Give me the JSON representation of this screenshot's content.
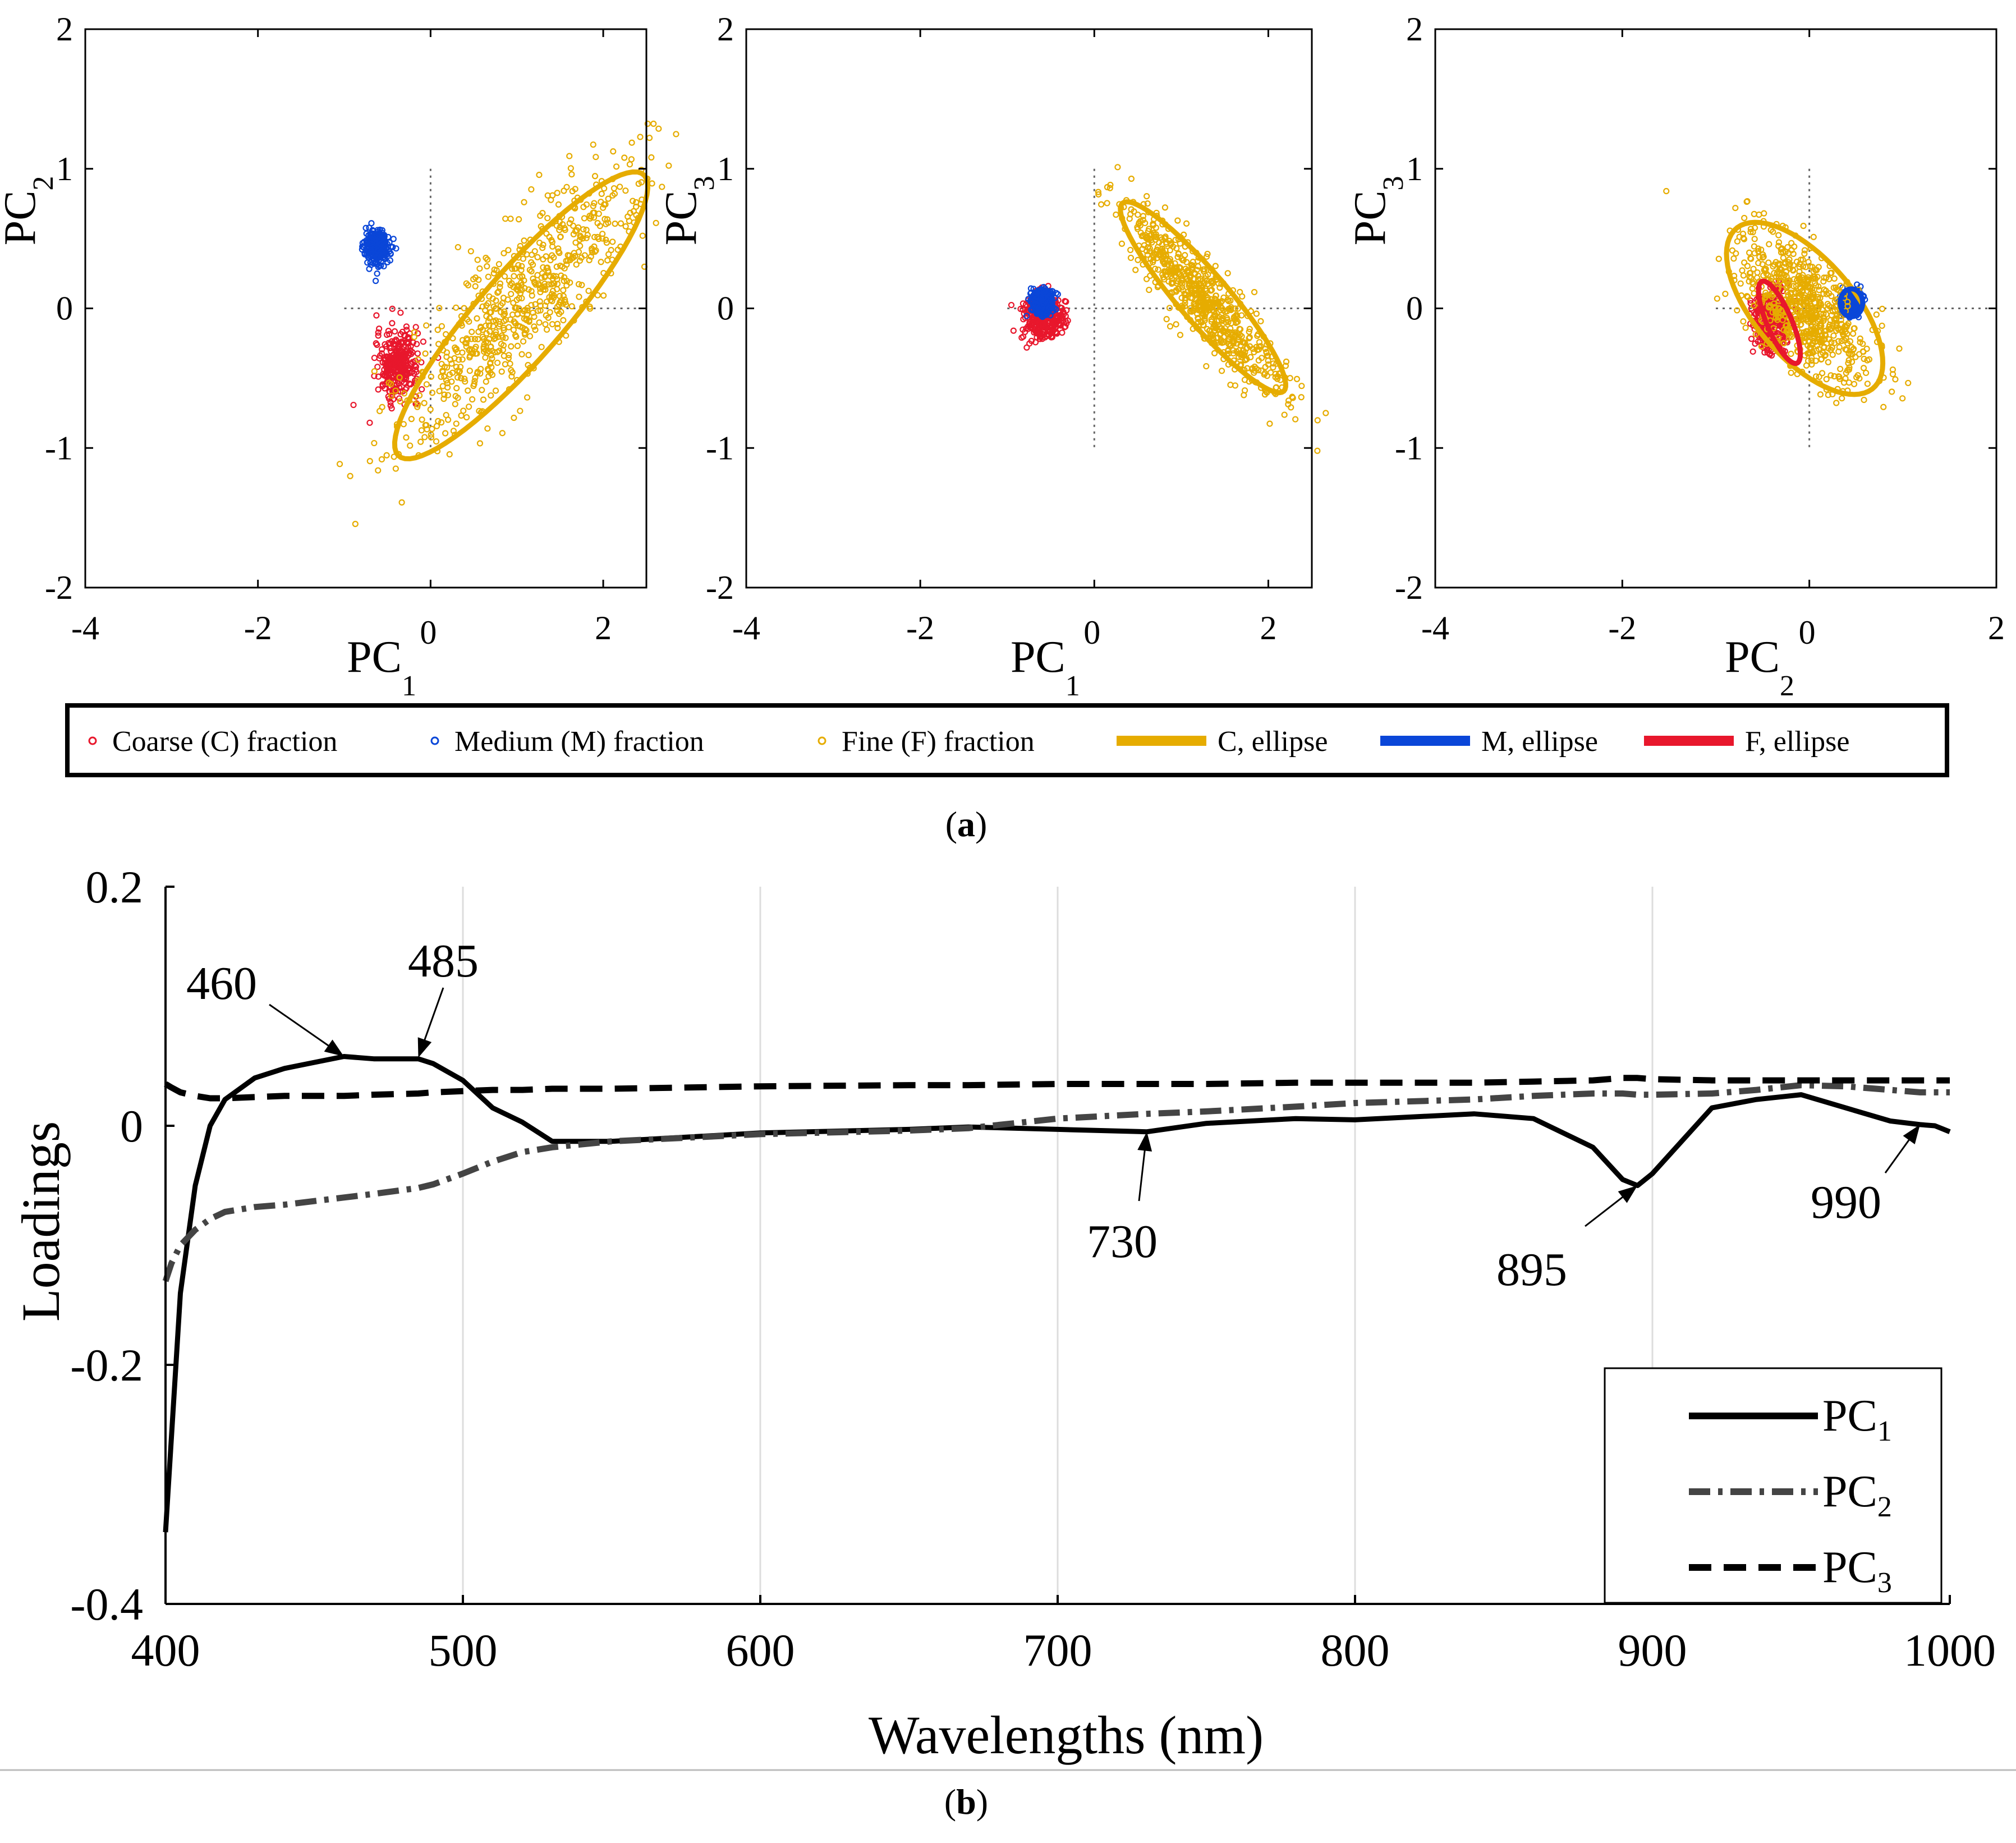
{
  "captions": {
    "a": "a",
    "b": "b"
  },
  "colors": {
    "coarse": "#e8172c",
    "medium": "#0a46d8",
    "fine": "#e6ac00",
    "pc1": "#000000",
    "pc2": "#444444",
    "pc3": "#000000"
  },
  "chart_data": [
    {
      "type": "scatter",
      "title": "",
      "xlabel": {
        "base": "PC",
        "sub": "1"
      },
      "ylabel": {
        "base": "PC",
        "sub": "2"
      },
      "xlim": [
        -4,
        2.5
      ],
      "ylim": [
        -2,
        2
      ],
      "xticks": [
        -4,
        -2,
        0,
        2
      ],
      "yticks": [
        -2,
        -1,
        0,
        1,
        2
      ],
      "series": [
        {
          "name": "Coarse (C) fraction",
          "center": [
            -0.38,
            -0.4
          ],
          "sd": [
            0.12,
            0.12
          ]
        },
        {
          "name": "Medium (M) fraction",
          "center": [
            -0.62,
            0.44
          ],
          "sd": [
            0.07,
            0.06
          ]
        },
        {
          "name": "Fine (F) fraction",
          "center": [
            1.05,
            0.05
          ],
          "sd": [
            0.45,
            0.28
          ]
        }
      ],
      "ellipses": [
        {
          "name": "C, ellipse",
          "center": [
            1.05,
            -0.05
          ],
          "semi": [
            1.75,
            0.38
          ],
          "angle_deg": 34
        }
      ]
    },
    {
      "type": "scatter",
      "title": "",
      "xlabel": {
        "base": "PC",
        "sub": "1"
      },
      "ylabel": {
        "base": "PC",
        "sub": "3"
      },
      "xlim": [
        -4,
        2.5
      ],
      "ylim": [
        -2,
        2
      ],
      "xticks": [
        -4,
        -2,
        0,
        2
      ],
      "yticks": [
        -2,
        -1,
        0,
        1,
        2
      ],
      "series": [
        {
          "name": "Coarse (C) fraction",
          "center": [
            -0.6,
            -0.07
          ],
          "sd": [
            0.12,
            0.08
          ]
        },
        {
          "name": "Medium (M) fraction",
          "center": [
            -0.6,
            0.04
          ],
          "sd": [
            0.06,
            0.05
          ]
        },
        {
          "name": "Fine (F) fraction",
          "center": [
            1.25,
            0.07
          ],
          "sd": [
            0.45,
            0.18
          ]
        }
      ],
      "ellipses": [
        {
          "name": "C, ellipse",
          "center": [
            1.25,
            0.08
          ],
          "semi": [
            1.15,
            0.22
          ],
          "angle_deg": -35
        }
      ]
    },
    {
      "type": "scatter",
      "title": "",
      "xlabel": {
        "base": "PC",
        "sub": "2"
      },
      "ylabel": {
        "base": "PC",
        "sub": "3"
      },
      "xlim": [
        -4,
        2
      ],
      "ylim": [
        -2,
        2
      ],
      "xticks": [
        -4,
        -2,
        0,
        2
      ],
      "yticks": [
        -2,
        -1,
        0,
        1,
        2
      ],
      "series": [
        {
          "name": "Coarse (C) fraction",
          "center": [
            -0.4,
            -0.1
          ],
          "sd": [
            0.1,
            0.12
          ]
        },
        {
          "name": "Medium (M) fraction",
          "center": [
            0.45,
            0.04
          ],
          "sd": [
            0.05,
            0.04
          ]
        },
        {
          "name": "Fine (F) fraction",
          "center": [
            -0.05,
            0.0
          ],
          "sd": [
            0.35,
            0.2
          ]
        }
      ],
      "ellipses": [
        {
          "name": "C, ellipse",
          "center": [
            -0.05,
            0.0
          ],
          "semi": [
            0.95,
            0.42
          ],
          "angle_deg": -32
        },
        {
          "name": "M, ellipse",
          "center": [
            0.45,
            0.04
          ],
          "semi": [
            0.12,
            0.1
          ],
          "angle_deg": 0
        },
        {
          "name": "F, ellipse",
          "center": [
            -0.32,
            -0.1
          ],
          "semi": [
            0.35,
            0.12
          ],
          "angle_deg": -55
        }
      ]
    },
    {
      "type": "line",
      "title": "",
      "xlabel": "Wavelengths (nm)",
      "ylabel": "Loadings",
      "xlim": [
        400,
        1000
      ],
      "ylim": [
        -0.4,
        0.2
      ],
      "xticks": [
        400,
        500,
        600,
        700,
        800,
        900,
        1000
      ],
      "yticks": [
        {
          "value": 0.2,
          "label": "0.2"
        },
        {
          "value": 0,
          "label": "0"
        },
        {
          "value": -0.2,
          "label": "-0.2"
        },
        {
          "value": -0.4,
          "label": "-0.4"
        }
      ],
      "grid": "vertical",
      "legend_position": "bottom-right",
      "x": [
        400,
        402,
        405,
        410,
        415,
        420,
        430,
        440,
        450,
        460,
        470,
        485,
        490,
        500,
        510,
        520,
        530,
        550,
        600,
        650,
        670,
        700,
        730,
        750,
        780,
        800,
        840,
        860,
        880,
        890,
        895,
        900,
        920,
        935,
        950,
        965,
        980,
        990,
        995,
        1000
      ],
      "series": [
        {
          "name": "PC1",
          "values": [
            -0.34,
            -0.26,
            -0.14,
            -0.05,
            0.0,
            0.022,
            0.04,
            0.048,
            0.053,
            0.058,
            0.056,
            0.056,
            0.052,
            0.038,
            0.015,
            0.003,
            -0.013,
            -0.013,
            -0.006,
            -0.003,
            -0.001,
            -0.003,
            -0.005,
            0.002,
            0.006,
            0.005,
            0.01,
            0.006,
            -0.018,
            -0.045,
            -0.05,
            -0.04,
            0.015,
            0.022,
            0.026,
            0.015,
            0.004,
            0.001,
            0.0,
            -0.005
          ]
        },
        {
          "name": "PC2",
          "values": [
            -0.13,
            -0.115,
            -0.1,
            -0.087,
            -0.078,
            -0.072,
            -0.068,
            -0.066,
            -0.063,
            -0.06,
            -0.057,
            -0.052,
            -0.049,
            -0.04,
            -0.03,
            -0.022,
            -0.018,
            -0.013,
            -0.007,
            -0.004,
            -0.002,
            0.006,
            0.01,
            0.012,
            0.016,
            0.019,
            0.022,
            0.025,
            0.027,
            0.027,
            0.026,
            0.026,
            0.027,
            0.03,
            0.034,
            0.033,
            0.03,
            0.028,
            0.028,
            0.028
          ]
        },
        {
          "name": "PC3",
          "values": [
            0.035,
            0.032,
            0.028,
            0.025,
            0.023,
            0.023,
            0.024,
            0.025,
            0.025,
            0.025,
            0.026,
            0.027,
            0.028,
            0.029,
            0.03,
            0.03,
            0.031,
            0.031,
            0.033,
            0.034,
            0.034,
            0.035,
            0.035,
            0.035,
            0.036,
            0.036,
            0.036,
            0.037,
            0.038,
            0.04,
            0.04,
            0.039,
            0.038,
            0.038,
            0.038,
            0.038,
            0.038,
            0.038,
            0.038,
            0.038
          ]
        }
      ],
      "annotations": [
        {
          "text": "460",
          "x": 460,
          "y": 0.058
        },
        {
          "text": "485",
          "x": 485,
          "y": 0.057
        },
        {
          "text": "730",
          "x": 730,
          "y": -0.005
        },
        {
          "text": "895",
          "x": 895,
          "y": -0.05
        },
        {
          "text": "990",
          "x": 990,
          "y": 0.001
        }
      ]
    }
  ],
  "legend_a": [
    {
      "name": "Coarse (C) fraction",
      "kind": "marker",
      "color": "#e8172c"
    },
    {
      "name": "Medium (M) fraction",
      "kind": "marker",
      "color": "#0a46d8"
    },
    {
      "name": "Fine (F) fraction",
      "kind": "marker",
      "color": "#e6ac00"
    },
    {
      "name": "C, ellipse",
      "kind": "line",
      "color": "#e6ac00"
    },
    {
      "name": "M, ellipse",
      "kind": "line",
      "color": "#0a46d8"
    },
    {
      "name": "F, ellipse",
      "kind": "line",
      "color": "#e8172c"
    }
  ],
  "legend_b": [
    {
      "base": "PC",
      "sub": "1",
      "dash": "solid"
    },
    {
      "base": "PC",
      "sub": "2",
      "dash": "dashdot"
    },
    {
      "base": "PC",
      "sub": "3",
      "dash": "dashed"
    }
  ]
}
